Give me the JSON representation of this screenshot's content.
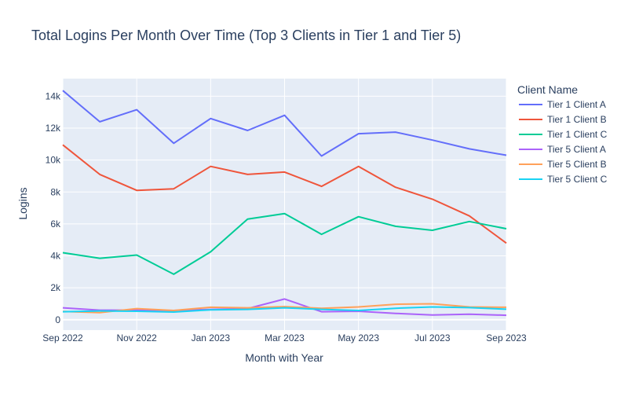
{
  "chart_data": {
    "type": "line",
    "title": "Total Logins Per Month Over Time (Top 3 Clients in Tier 1 and Tier 5)",
    "xlabel": "Month with Year",
    "ylabel": "Logins",
    "x": [
      "2022-09",
      "2022-10",
      "2022-11",
      "2022-12",
      "2023-01",
      "2023-02",
      "2023-03",
      "2023-04",
      "2023-05",
      "2023-06",
      "2023-07",
      "2023-08",
      "2023-09"
    ],
    "x_tick_labels": [
      "Sep 2022",
      "Nov 2022",
      "Jan 2023",
      "Mar 2023",
      "May 2023",
      "Jul 2023",
      "Sep 2023"
    ],
    "y_tick_values": [
      0,
      2000,
      4000,
      6000,
      8000,
      10000,
      12000,
      14000
    ],
    "y_tick_labels": [
      "0",
      "2k",
      "4k",
      "6k",
      "8k",
      "10k",
      "12k",
      "14k"
    ],
    "ylim": [
      -650,
      15100
    ],
    "grid": true,
    "legend_title": "Client Name",
    "legend_placement": "right",
    "series": [
      {
        "name": "Tier 1 Client A",
        "color": "#636efa",
        "values": [
          14350,
          12400,
          13150,
          11050,
          12600,
          11850,
          12800,
          10250,
          11650,
          11750,
          11250,
          10700,
          10300
        ]
      },
      {
        "name": "Tier 1 Client B",
        "color": "#ef553b",
        "values": [
          10950,
          9100,
          8100,
          8200,
          9600,
          9100,
          9250,
          8350,
          9600,
          8300,
          7550,
          6500,
          4800
        ]
      },
      {
        "name": "Tier 1 Client C",
        "color": "#00cc96",
        "values": [
          4200,
          3850,
          4050,
          2850,
          4250,
          6300,
          6650,
          5350,
          6450,
          5850,
          5600,
          6150,
          5700
        ]
      },
      {
        "name": "Tier 5 Client A",
        "color": "#ab63fa",
        "values": [
          750,
          600,
          600,
          580,
          650,
          700,
          1300,
          500,
          530,
          400,
          300,
          350,
          280
        ]
      },
      {
        "name": "Tier 5 Client B",
        "color": "#ffa15a",
        "values": [
          520,
          450,
          700,
          580,
          780,
          750,
          820,
          720,
          800,
          970,
          1000,
          800,
          780
        ]
      },
      {
        "name": "Tier 5 Client C",
        "color": "#19d3f3",
        "values": [
          500,
          550,
          530,
          480,
          620,
          650,
          750,
          650,
          580,
          720,
          800,
          760,
          660
        ]
      }
    ]
  }
}
